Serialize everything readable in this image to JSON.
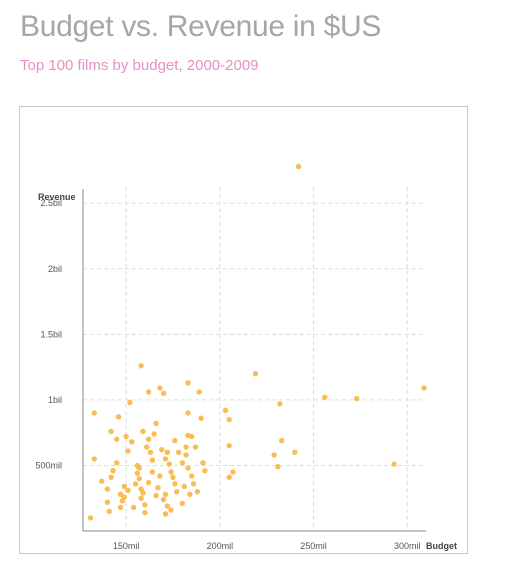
{
  "title": "Budget vs. Revenue in $US",
  "subtitle": "Top 100 films by budget, 2000-2009",
  "chart_data": {
    "type": "scatter",
    "xlabel": "Budget",
    "ylabel": "Revenue",
    "xlim": [
      127,
      310
    ],
    "ylim": [
      0,
      2700
    ],
    "x_ticks": [
      150,
      200,
      250,
      300
    ],
    "x_tick_labels": [
      "150mil",
      "200mil",
      "250mil",
      "300mil"
    ],
    "y_ticks": [
      500,
      1000,
      1500,
      2000,
      2500
    ],
    "y_tick_labels": [
      "500mil",
      "1bil",
      "1.5bil",
      "2bil",
      "2.5bil"
    ],
    "grid": true,
    "point_color": "#fbb540",
    "x_unit": "million USD",
    "y_unit": "million USD",
    "points": [
      [
        242,
        2780
      ],
      [
        133,
        900
      ],
      [
        131,
        100
      ],
      [
        133,
        550
      ],
      [
        137,
        380
      ],
      [
        140,
        320
      ],
      [
        140,
        220
      ],
      [
        142,
        760
      ],
      [
        143,
        460
      ],
      [
        141,
        150
      ],
      [
        145,
        700
      ],
      [
        146,
        870
      ],
      [
        147,
        280
      ],
      [
        148,
        230
      ],
      [
        149,
        340
      ],
      [
        150,
        720
      ],
      [
        152,
        980
      ],
      [
        154,
        180
      ],
      [
        151,
        610
      ],
      [
        153,
        680
      ],
      [
        158,
        1260
      ],
      [
        156,
        500
      ],
      [
        157,
        400
      ],
      [
        158,
        320
      ],
      [
        159,
        290
      ],
      [
        162,
        1060
      ],
      [
        162,
        700
      ],
      [
        165,
        740
      ],
      [
        166,
        820
      ],
      [
        163,
        600
      ],
      [
        164,
        450
      ],
      [
        168,
        1090
      ],
      [
        170,
        1050
      ],
      [
        169,
        620
      ],
      [
        172,
        600
      ],
      [
        171,
        550
      ],
      [
        173,
        510
      ],
      [
        174,
        450
      ],
      [
        175,
        410
      ],
      [
        176,
        360
      ],
      [
        177,
        300
      ],
      [
        170,
        240
      ],
      [
        172,
        190
      ],
      [
        171,
        130
      ],
      [
        183,
        1130
      ],
      [
        183,
        900
      ],
      [
        183,
        730
      ],
      [
        182,
        640
      ],
      [
        182,
        580
      ],
      [
        183,
        480
      ],
      [
        185,
        420
      ],
      [
        186,
        360
      ],
      [
        189,
        1060
      ],
      [
        190,
        860
      ],
      [
        191,
        520
      ],
      [
        184,
        280
      ],
      [
        159,
        760
      ],
      [
        162,
        370
      ],
      [
        160,
        140
      ],
      [
        203,
        920
      ],
      [
        205,
        850
      ],
      [
        205,
        650
      ],
      [
        207,
        450
      ],
      [
        205,
        410
      ],
      [
        219,
        1200
      ],
      [
        229,
        580
      ],
      [
        231,
        490
      ],
      [
        232,
        970
      ],
      [
        233,
        690
      ],
      [
        240,
        600
      ],
      [
        256,
        1020
      ],
      [
        273,
        1010
      ],
      [
        293,
        510
      ],
      [
        309,
        1090
      ],
      [
        142,
        410
      ],
      [
        145,
        520
      ],
      [
        147,
        180
      ],
      [
        149,
        260
      ],
      [
        151,
        310
      ],
      [
        155,
        360
      ],
      [
        156,
        440
      ],
      [
        157,
        480
      ],
      [
        158,
        250
      ],
      [
        160,
        200
      ],
      [
        161,
        640
      ],
      [
        164,
        540
      ],
      [
        167,
        330
      ],
      [
        168,
        420
      ],
      [
        171,
        280
      ],
      [
        174,
        160
      ],
      [
        176,
        690
      ],
      [
        178,
        600
      ],
      [
        180,
        520
      ],
      [
        181,
        340
      ],
      [
        185,
        720
      ],
      [
        187,
        640
      ],
      [
        188,
        300
      ],
      [
        192,
        460
      ],
      [
        180,
        210
      ],
      [
        166,
        270
      ]
    ]
  }
}
